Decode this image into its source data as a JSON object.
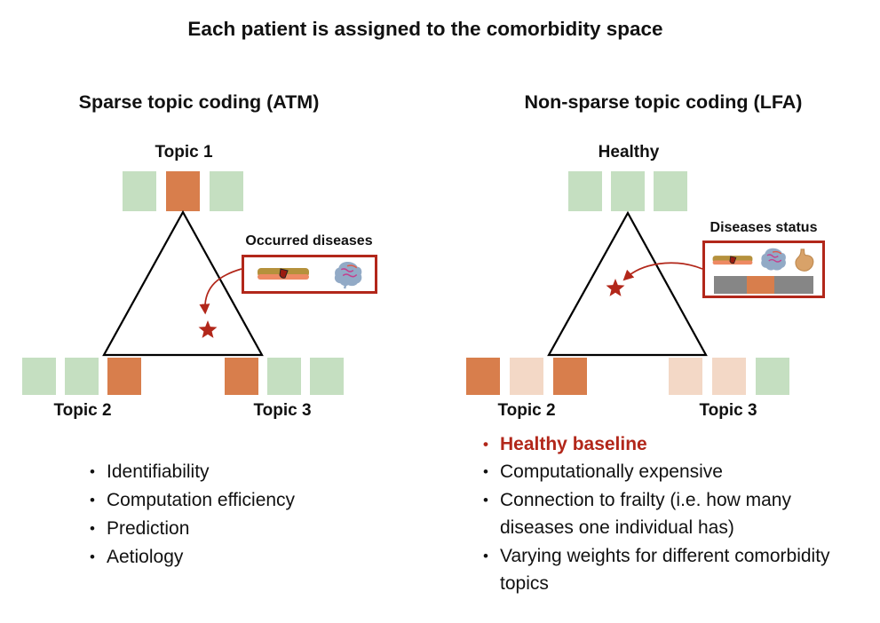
{
  "title": "Each patient is assigned to the comorbidity space",
  "colors": {
    "orange": "#D87E4C",
    "green": "#C5DFC1",
    "pink": "#F3D8C6",
    "gray": "#868686",
    "red": "#B2271A"
  },
  "left_panel": {
    "heading": "Sparse topic coding (ATM)",
    "top_label": "Topic 1",
    "bottom_left_label": "Topic 2",
    "bottom_right_label": "Topic 3",
    "top_squares": [
      "green",
      "orange",
      "green"
    ],
    "bottom_left_squares": [
      "green",
      "green",
      "orange"
    ],
    "bottom_right_squares": [
      "orange",
      "green",
      "green"
    ],
    "box": {
      "label": "Occurred diseases",
      "icons": [
        "skin-icon",
        "brain-icon"
      ]
    },
    "bullets": [
      {
        "text": "Identifiability"
      },
      {
        "text": "Computation efficiency"
      },
      {
        "text": "Prediction"
      },
      {
        "text": "Aetiology"
      }
    ]
  },
  "right_panel": {
    "heading": "Non-sparse topic coding (LFA)",
    "top_label": "Healthy",
    "bottom_left_label": "Topic 2",
    "bottom_right_label": "Topic 3",
    "top_squares": [
      "green",
      "green",
      "green"
    ],
    "bottom_left_squares": [
      "orange",
      "pink",
      "orange"
    ],
    "bottom_right_squares": [
      "pink",
      "pink",
      "green"
    ],
    "box": {
      "label": "Diseases status",
      "icons": [
        "skin-icon",
        "brain-icon",
        "stomach-icon"
      ],
      "status_bar": [
        "gray",
        "orange",
        "gray"
      ]
    },
    "bullets": [
      {
        "text": "Healthy baseline",
        "highlight": true
      },
      {
        "text": "Computationally expensive"
      },
      {
        "text": "Connection to frailty (i.e. how many diseases one individual has)"
      },
      {
        "text": "Varying weights for different comorbidity topics"
      }
    ]
  }
}
